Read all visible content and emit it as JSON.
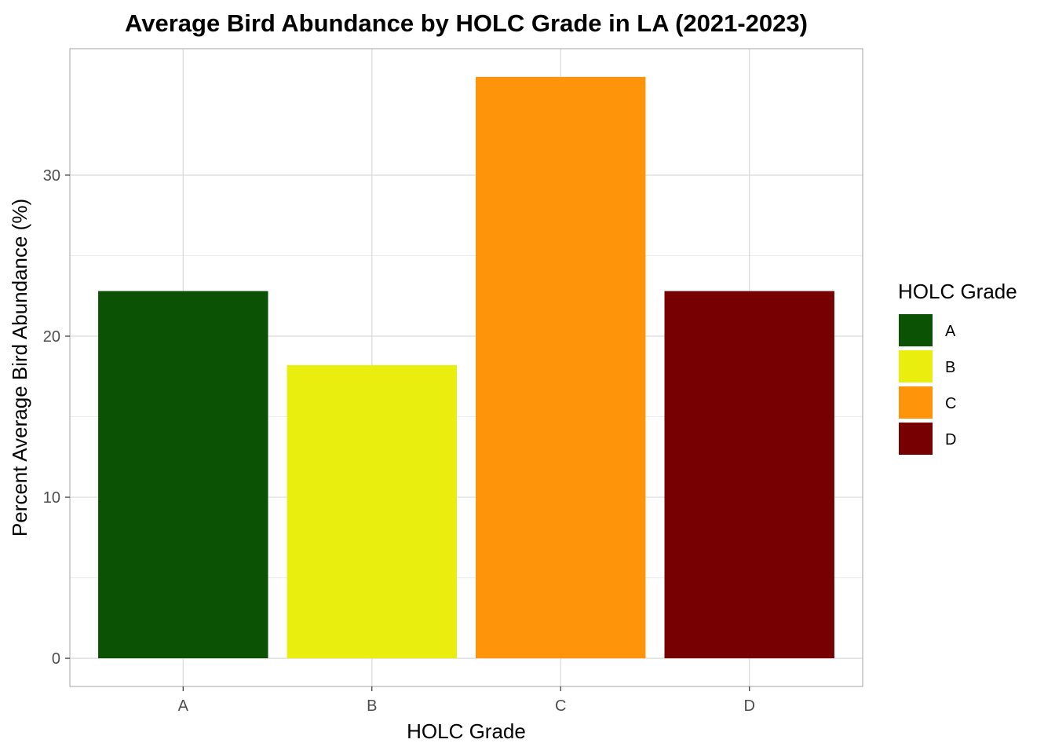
{
  "chart_data": {
    "type": "bar",
    "title": "Average Bird Abundance by HOLC Grade in LA (2021-2023)",
    "xlabel": "HOLC Grade",
    "ylabel": "Percent Average Bird Abundance (%)",
    "categories": [
      "A",
      "B",
      "C",
      "D"
    ],
    "values": [
      22.8,
      18.2,
      36.1,
      22.8
    ],
    "colors": [
      "#0b5205",
      "#eaee0f",
      "#fd9409",
      "#770002"
    ],
    "ylim": [
      -1.75,
      37.85
    ],
    "yticks": [
      0,
      10,
      20,
      30
    ],
    "grid": true,
    "legend": {
      "title": "HOLC Grade",
      "placement": "right",
      "entries": [
        "A",
        "B",
        "C",
        "D"
      ]
    }
  }
}
